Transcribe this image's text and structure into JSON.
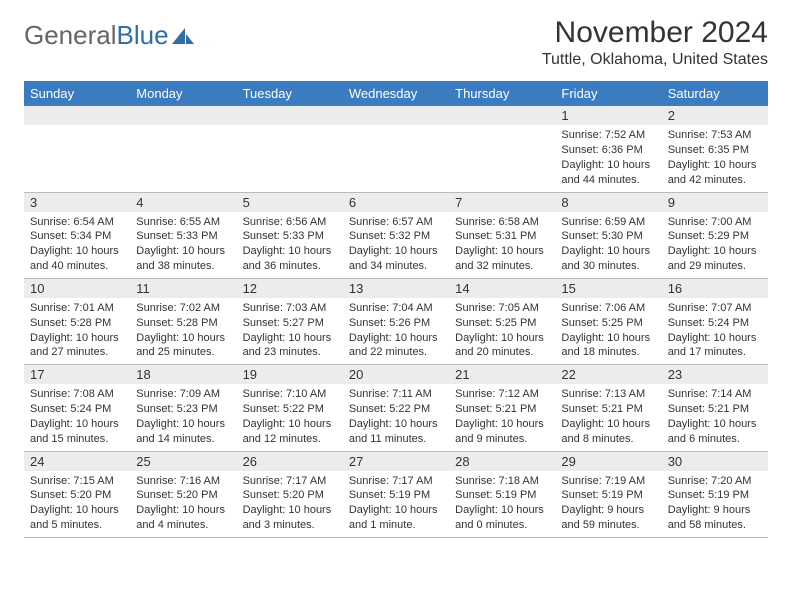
{
  "logo": {
    "text1": "General",
    "text2": "Blue"
  },
  "title": "November 2024",
  "location": "Tuttle, Oklahoma, United States",
  "colors": {
    "header_bg": "#3a7cbf",
    "daynum_bg": "#ececec"
  },
  "weekdays": [
    "Sunday",
    "Monday",
    "Tuesday",
    "Wednesday",
    "Thursday",
    "Friday",
    "Saturday"
  ],
  "weeks": [
    [
      null,
      null,
      null,
      null,
      null,
      {
        "n": "1",
        "sr": "Sunrise: 7:52 AM",
        "ss": "Sunset: 6:36 PM",
        "dl": "Daylight: 10 hours and 44 minutes."
      },
      {
        "n": "2",
        "sr": "Sunrise: 7:53 AM",
        "ss": "Sunset: 6:35 PM",
        "dl": "Daylight: 10 hours and 42 minutes."
      }
    ],
    [
      {
        "n": "3",
        "sr": "Sunrise: 6:54 AM",
        "ss": "Sunset: 5:34 PM",
        "dl": "Daylight: 10 hours and 40 minutes."
      },
      {
        "n": "4",
        "sr": "Sunrise: 6:55 AM",
        "ss": "Sunset: 5:33 PM",
        "dl": "Daylight: 10 hours and 38 minutes."
      },
      {
        "n": "5",
        "sr": "Sunrise: 6:56 AM",
        "ss": "Sunset: 5:33 PM",
        "dl": "Daylight: 10 hours and 36 minutes."
      },
      {
        "n": "6",
        "sr": "Sunrise: 6:57 AM",
        "ss": "Sunset: 5:32 PM",
        "dl": "Daylight: 10 hours and 34 minutes."
      },
      {
        "n": "7",
        "sr": "Sunrise: 6:58 AM",
        "ss": "Sunset: 5:31 PM",
        "dl": "Daylight: 10 hours and 32 minutes."
      },
      {
        "n": "8",
        "sr": "Sunrise: 6:59 AM",
        "ss": "Sunset: 5:30 PM",
        "dl": "Daylight: 10 hours and 30 minutes."
      },
      {
        "n": "9",
        "sr": "Sunrise: 7:00 AM",
        "ss": "Sunset: 5:29 PM",
        "dl": "Daylight: 10 hours and 29 minutes."
      }
    ],
    [
      {
        "n": "10",
        "sr": "Sunrise: 7:01 AM",
        "ss": "Sunset: 5:28 PM",
        "dl": "Daylight: 10 hours and 27 minutes."
      },
      {
        "n": "11",
        "sr": "Sunrise: 7:02 AM",
        "ss": "Sunset: 5:28 PM",
        "dl": "Daylight: 10 hours and 25 minutes."
      },
      {
        "n": "12",
        "sr": "Sunrise: 7:03 AM",
        "ss": "Sunset: 5:27 PM",
        "dl": "Daylight: 10 hours and 23 minutes."
      },
      {
        "n": "13",
        "sr": "Sunrise: 7:04 AM",
        "ss": "Sunset: 5:26 PM",
        "dl": "Daylight: 10 hours and 22 minutes."
      },
      {
        "n": "14",
        "sr": "Sunrise: 7:05 AM",
        "ss": "Sunset: 5:25 PM",
        "dl": "Daylight: 10 hours and 20 minutes."
      },
      {
        "n": "15",
        "sr": "Sunrise: 7:06 AM",
        "ss": "Sunset: 5:25 PM",
        "dl": "Daylight: 10 hours and 18 minutes."
      },
      {
        "n": "16",
        "sr": "Sunrise: 7:07 AM",
        "ss": "Sunset: 5:24 PM",
        "dl": "Daylight: 10 hours and 17 minutes."
      }
    ],
    [
      {
        "n": "17",
        "sr": "Sunrise: 7:08 AM",
        "ss": "Sunset: 5:24 PM",
        "dl": "Daylight: 10 hours and 15 minutes."
      },
      {
        "n": "18",
        "sr": "Sunrise: 7:09 AM",
        "ss": "Sunset: 5:23 PM",
        "dl": "Daylight: 10 hours and 14 minutes."
      },
      {
        "n": "19",
        "sr": "Sunrise: 7:10 AM",
        "ss": "Sunset: 5:22 PM",
        "dl": "Daylight: 10 hours and 12 minutes."
      },
      {
        "n": "20",
        "sr": "Sunrise: 7:11 AM",
        "ss": "Sunset: 5:22 PM",
        "dl": "Daylight: 10 hours and 11 minutes."
      },
      {
        "n": "21",
        "sr": "Sunrise: 7:12 AM",
        "ss": "Sunset: 5:21 PM",
        "dl": "Daylight: 10 hours and 9 minutes."
      },
      {
        "n": "22",
        "sr": "Sunrise: 7:13 AM",
        "ss": "Sunset: 5:21 PM",
        "dl": "Daylight: 10 hours and 8 minutes."
      },
      {
        "n": "23",
        "sr": "Sunrise: 7:14 AM",
        "ss": "Sunset: 5:21 PM",
        "dl": "Daylight: 10 hours and 6 minutes."
      }
    ],
    [
      {
        "n": "24",
        "sr": "Sunrise: 7:15 AM",
        "ss": "Sunset: 5:20 PM",
        "dl": "Daylight: 10 hours and 5 minutes."
      },
      {
        "n": "25",
        "sr": "Sunrise: 7:16 AM",
        "ss": "Sunset: 5:20 PM",
        "dl": "Daylight: 10 hours and 4 minutes."
      },
      {
        "n": "26",
        "sr": "Sunrise: 7:17 AM",
        "ss": "Sunset: 5:20 PM",
        "dl": "Daylight: 10 hours and 3 minutes."
      },
      {
        "n": "27",
        "sr": "Sunrise: 7:17 AM",
        "ss": "Sunset: 5:19 PM",
        "dl": "Daylight: 10 hours and 1 minute."
      },
      {
        "n": "28",
        "sr": "Sunrise: 7:18 AM",
        "ss": "Sunset: 5:19 PM",
        "dl": "Daylight: 10 hours and 0 minutes."
      },
      {
        "n": "29",
        "sr": "Sunrise: 7:19 AM",
        "ss": "Sunset: 5:19 PM",
        "dl": "Daylight: 9 hours and 59 minutes."
      },
      {
        "n": "30",
        "sr": "Sunrise: 7:20 AM",
        "ss": "Sunset: 5:19 PM",
        "dl": "Daylight: 9 hours and 58 minutes."
      }
    ]
  ]
}
